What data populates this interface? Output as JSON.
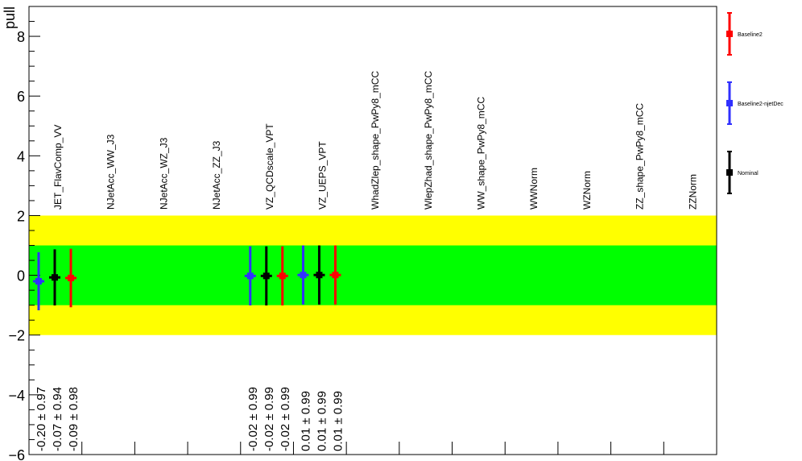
{
  "chart_data": {
    "type": "scatter",
    "ylabel": "pull",
    "ylim": [
      -6,
      9
    ],
    "yticks": [
      -6,
      -4,
      -2,
      0,
      2,
      4,
      6,
      8
    ],
    "ytick_labels": [
      "−6",
      "−4",
      "−2",
      "0",
      "2",
      "4",
      "6",
      "8"
    ],
    "bands": [
      {
        "name": "2-sigma",
        "low": -2,
        "high": 2,
        "color": "#ffff00"
      },
      {
        "name": "1-sigma",
        "low": -1,
        "high": 1,
        "color": "#00ff00"
      }
    ],
    "categories": [
      "JET_FlavComp_VV",
      "NJetAcc_WW_J3",
      "NJetAcc_WZ_J3",
      "NJetAcc_ZZ_J3",
      "VZ_QCDscale_VPT",
      "VZ_UEPS_VPT",
      "WhadZlep_shape_PwPy8_mCC",
      "WlepZhad_shape_PwPy8_mCC",
      "WW_shape_PwPy8_mCC",
      "WWNorm",
      "WZNorm",
      "ZZ_shape_PwPy8_mCC",
      "ZZNorm"
    ],
    "series": [
      {
        "name": "Baseline2-njetDec",
        "color": "#3030ff",
        "points": [
          {
            "category": 0,
            "value": -0.2,
            "error": 0.97,
            "label": "-0.20 ± 0.97"
          },
          {
            "category": 4,
            "value": -0.02,
            "error": 0.99,
            "label": "-0.02 ± 0.99"
          },
          {
            "category": 5,
            "value": 0.01,
            "error": 0.99,
            "label": "0.01 ± 0.99"
          }
        ]
      },
      {
        "name": "Nominal",
        "color": "#000000",
        "points": [
          {
            "category": 0,
            "value": -0.07,
            "error": 0.94,
            "label": "-0.07 ± 0.94"
          },
          {
            "category": 4,
            "value": -0.02,
            "error": 0.99,
            "label": "-0.02 ± 0.99"
          },
          {
            "category": 5,
            "value": 0.01,
            "error": 0.99,
            "label": "0.01 ± 0.99"
          }
        ]
      },
      {
        "name": "Baseline2",
        "color": "#ff0000",
        "points": [
          {
            "category": 0,
            "value": -0.09,
            "error": 0.98,
            "label": "-0.09 ± 0.98"
          },
          {
            "category": 4,
            "value": -0.02,
            "error": 0.99,
            "label": "-0.02 ± 0.99"
          },
          {
            "category": 5,
            "value": 0.01,
            "error": 0.99,
            "label": "0.01 ± 0.99"
          }
        ]
      }
    ],
    "legend": {
      "placement": "right",
      "entries": [
        "Baseline2",
        "Baseline2-njetDec",
        "Nominal"
      ]
    }
  }
}
